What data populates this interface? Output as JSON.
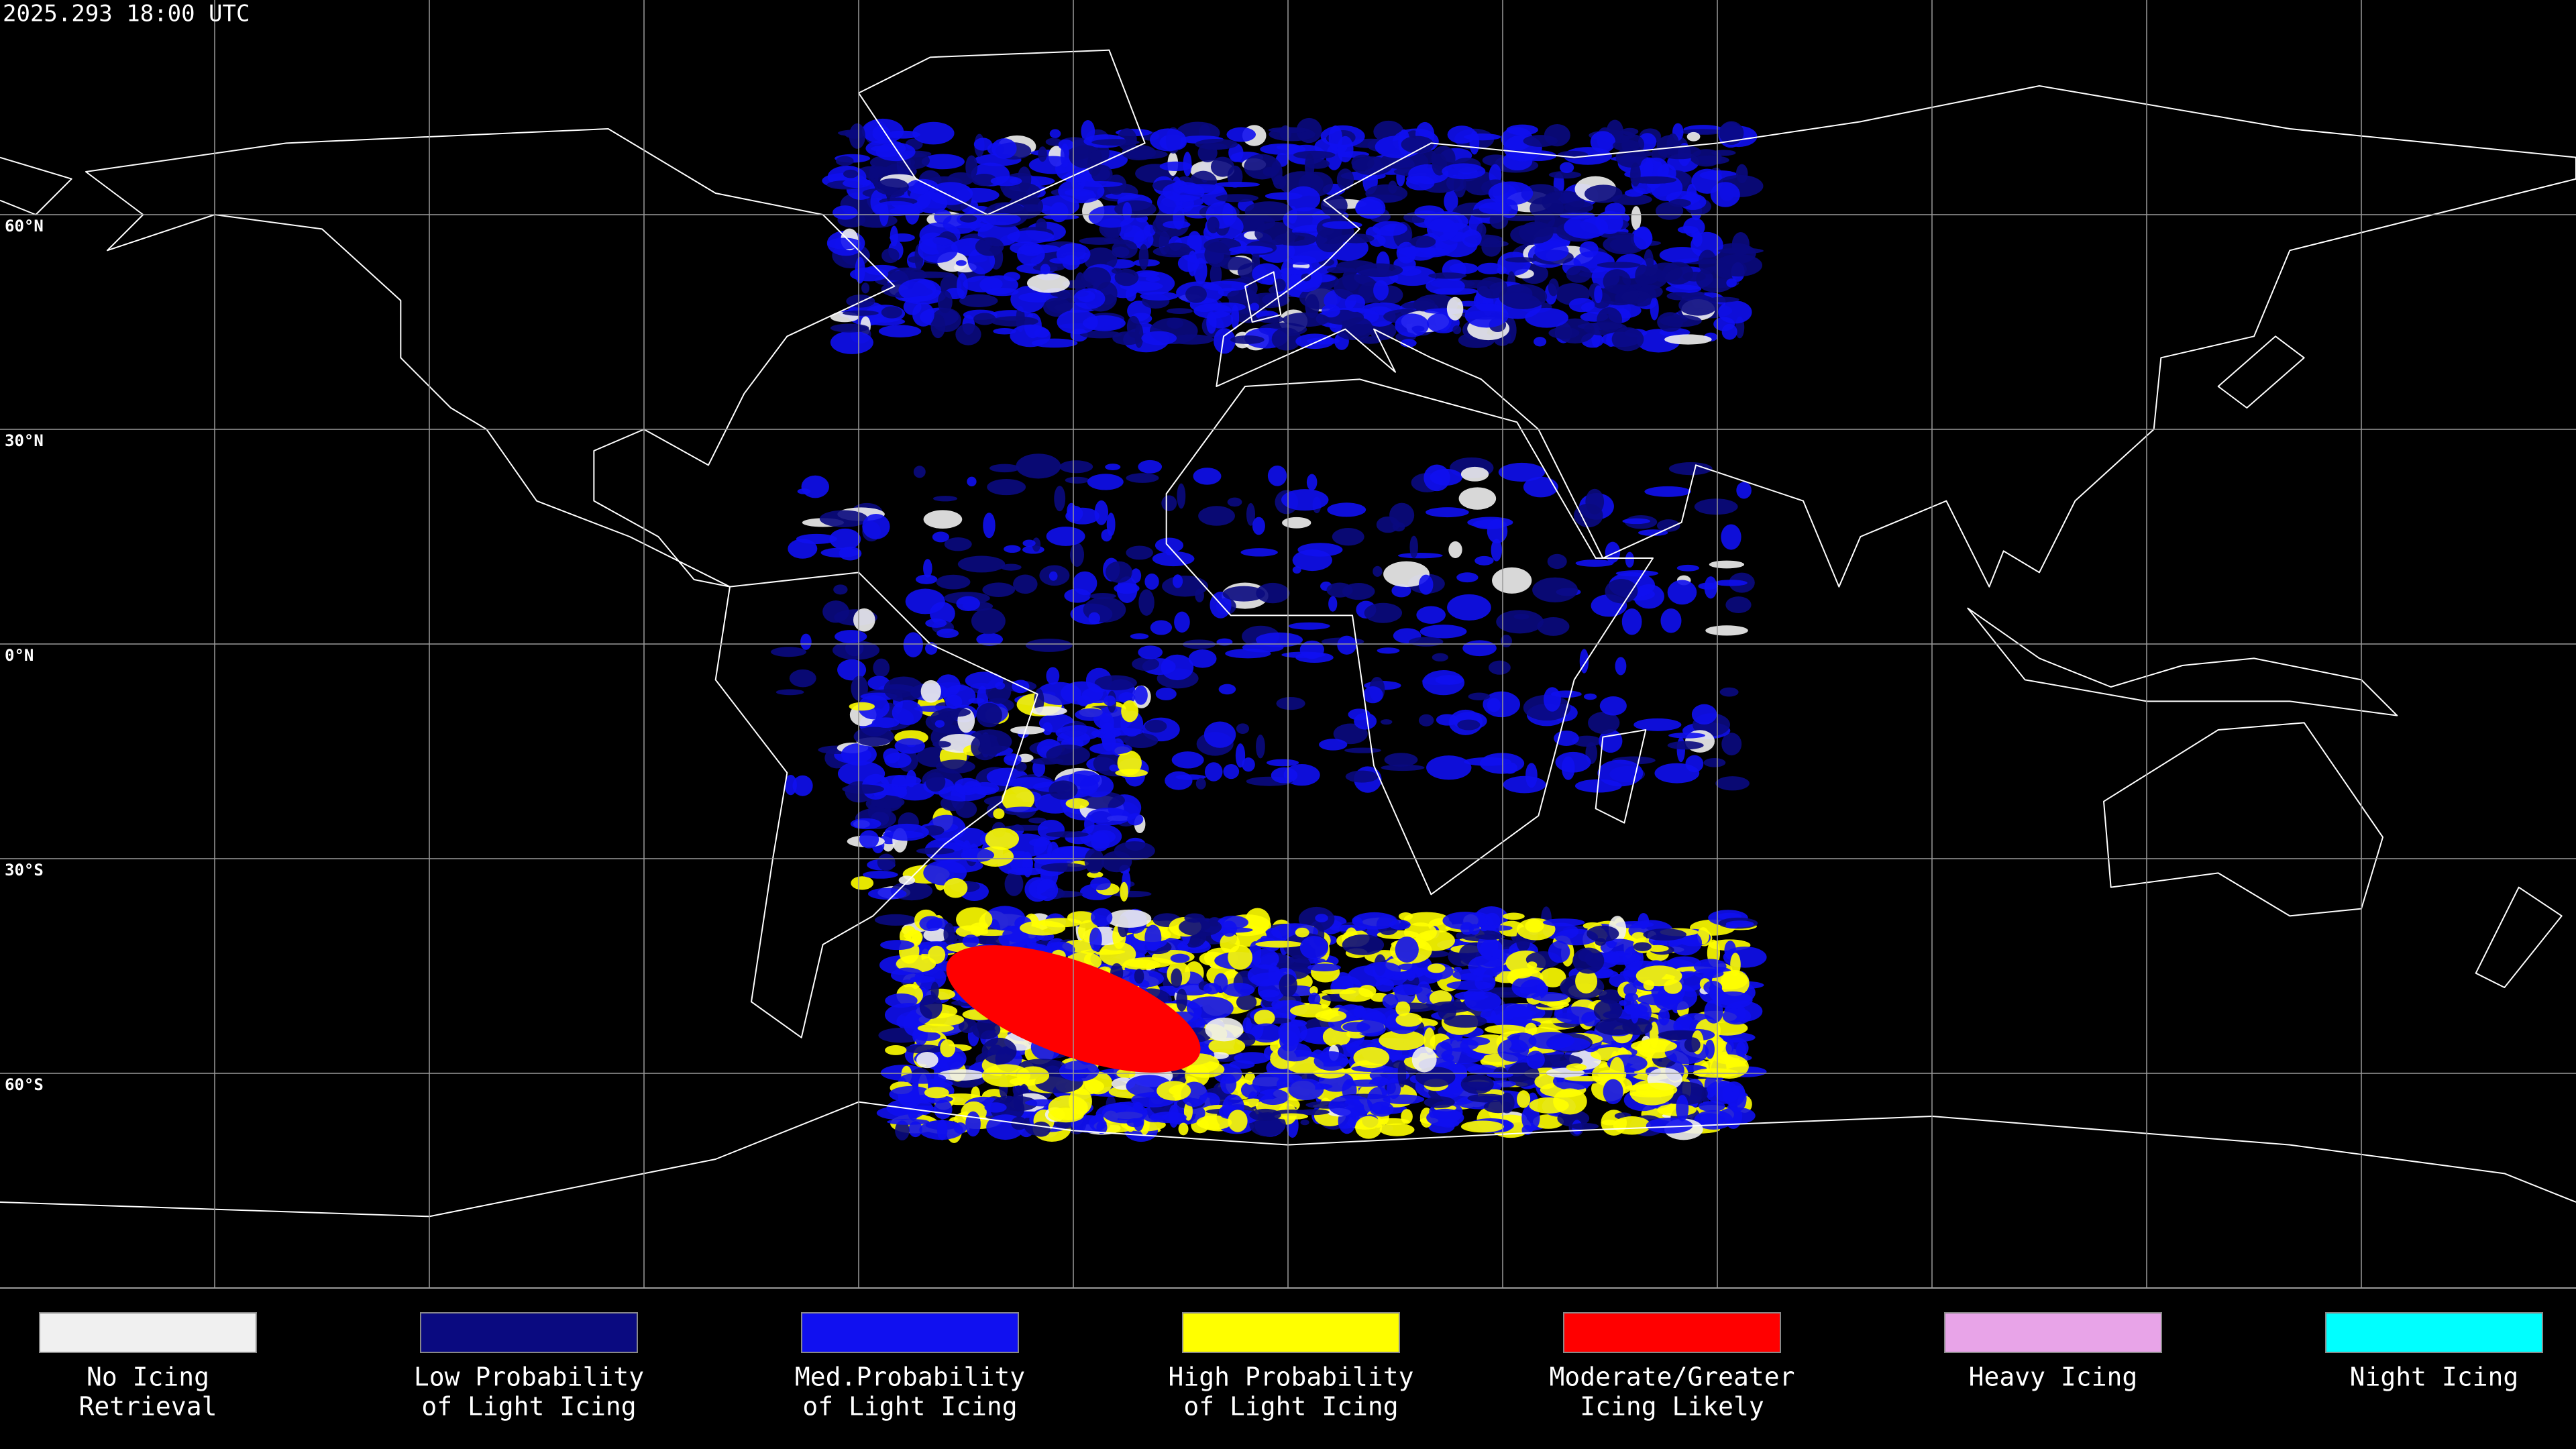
{
  "header": {
    "timestamp": "2025.293 18:00 UTC"
  },
  "map": {
    "lat_labels": [
      "60°N",
      "30°N",
      "0°N",
      "30°S",
      "60°S"
    ]
  },
  "legend": [
    {
      "color": "#f0f0f0",
      "label": [
        "No Icing",
        "Retrieval"
      ]
    },
    {
      "color": "#0a0a80",
      "label": [
        "Low Probability",
        "of Light Icing"
      ]
    },
    {
      "color": "#1010f0",
      "label": [
        "Med.Probability",
        "of Light Icing"
      ]
    },
    {
      "color": "#ffff00",
      "label": [
        "High Probability",
        "of Light Icing"
      ]
    },
    {
      "color": "#ff0000",
      "label": [
        "Moderate/Greater",
        "Icing Likely"
      ]
    },
    {
      "color": "#e8a4e8",
      "label": [
        "Heavy Icing"
      ]
    },
    {
      "color": "#00ffff",
      "label": [
        "Night Icing"
      ]
    }
  ]
}
